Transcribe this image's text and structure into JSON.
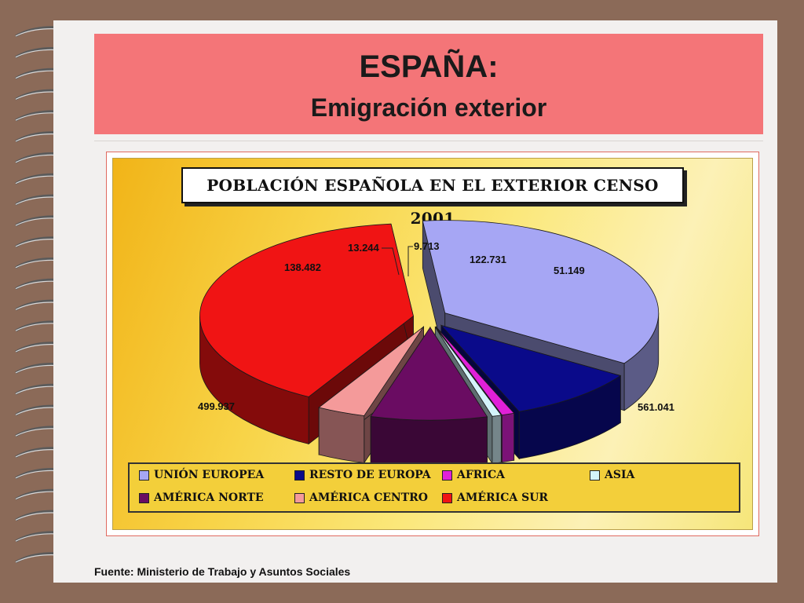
{
  "slide": {
    "title": "ESPAÑA:",
    "subtitle": "Emigración exterior",
    "source": "Fuente: Ministerio de Trabajo y Asuntos Sociales"
  },
  "chart_data": {
    "type": "pie",
    "title": "POBLACIÓN ESPAÑOLA EN EL EXTERIOR CENSO 2001",
    "three_d": true,
    "exploded": true,
    "legend_position": "bottom",
    "slices": [
      {
        "label": "UNIÓN EUROPEA",
        "value": 499937,
        "display": "499.937",
        "color": "#a6a6f4"
      },
      {
        "label": "RESTO DE EUROPA",
        "value": 138482,
        "display": "138.482",
        "color": "#0a0a8a"
      },
      {
        "label": "AFRICA",
        "value": 13244,
        "display": "13.244",
        "color": "#e020d8"
      },
      {
        "label": "ASIA",
        "value": 9713,
        "display": "9.713",
        "color": "#d4f4fa"
      },
      {
        "label": "AMÉRICA NORTE",
        "value": 122731,
        "display": "122.731",
        "color": "#6a0c62"
      },
      {
        "label": "AMÉRICA CENTRO",
        "value": 51149,
        "display": "51.149",
        "color": "#f49a9a"
      },
      {
        "label": "AMÉRICA SUR",
        "value": 561041,
        "display": "561.041",
        "color": "#f01414"
      }
    ]
  }
}
